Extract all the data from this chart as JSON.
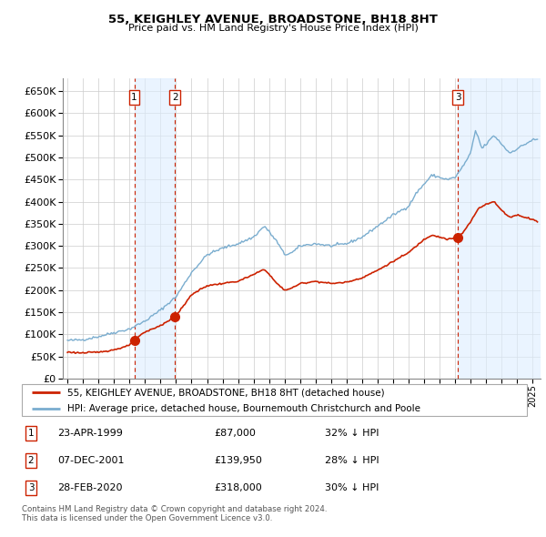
{
  "title": "55, KEIGHLEY AVENUE, BROADSTONE, BH18 8HT",
  "subtitle": "Price paid vs. HM Land Registry's House Price Index (HPI)",
  "ylim": [
    0,
    680000
  ],
  "yticks": [
    0,
    50000,
    100000,
    150000,
    200000,
    250000,
    300000,
    350000,
    400000,
    450000,
    500000,
    550000,
    600000,
    650000
  ],
  "xlim_start": 1994.7,
  "xlim_end": 2025.5,
  "hpi_color": "#7aadcf",
  "price_color": "#cc2200",
  "vline_color": "#cc2200",
  "shade_color": "#ddeeff",
  "grid_color": "#cccccc",
  "transactions": [
    {
      "date_num": 1999.31,
      "price": 87000,
      "label": "1"
    },
    {
      "date_num": 2001.93,
      "price": 139950,
      "label": "2"
    },
    {
      "date_num": 2020.16,
      "price": 318000,
      "label": "3"
    }
  ],
  "legend_entries": [
    "55, KEIGHLEY AVENUE, BROADSTONE, BH18 8HT (detached house)",
    "HPI: Average price, detached house, Bournemouth Christchurch and Poole"
  ],
  "table_rows": [
    {
      "num": "1",
      "date": "23-APR-1999",
      "price": "£87,000",
      "hpi": "32% ↓ HPI"
    },
    {
      "num": "2",
      "date": "07-DEC-2001",
      "price": "£139,950",
      "hpi": "28% ↓ HPI"
    },
    {
      "num": "3",
      "date": "28-FEB-2020",
      "price": "£318,000",
      "hpi": "30% ↓ HPI"
    }
  ],
  "footnote": "Contains HM Land Registry data © Crown copyright and database right 2024.\nThis data is licensed under the Open Government Licence v3.0."
}
